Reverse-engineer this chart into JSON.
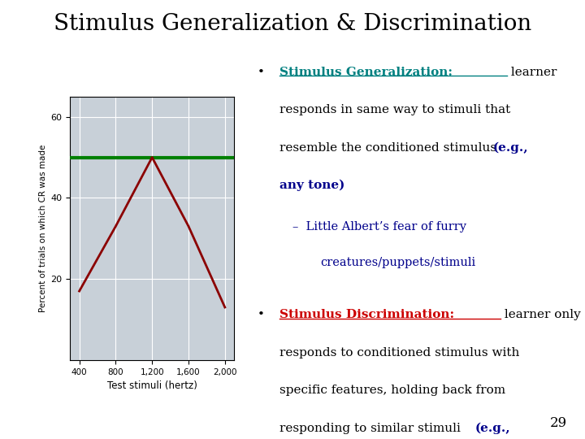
{
  "title": "Stimulus Generalization & Discrimination",
  "title_fontsize": 20,
  "title_color": "#000000",
  "background_color": "#ffffff",
  "chart_bg": "#f5e6d8",
  "plot_bg": "#c8d0d8",
  "xlabel": "Test stimuli (hertz)",
  "ylabel": "Percent of trials on which CR was made",
  "x_ticks": [
    400,
    800,
    1200,
    1600,
    2000
  ],
  "x_tick_labels": [
    "400",
    "800",
    "1,200",
    "1,600",
    "2,000"
  ],
  "y_ticks": [
    20,
    40,
    60
  ],
  "ylim": [
    0,
    65
  ],
  "xlim": [
    300,
    2100
  ],
  "red_line_x": [
    400,
    800,
    1200,
    1600,
    2000
  ],
  "red_line_y": [
    17,
    33,
    50,
    33,
    13
  ],
  "green_line_y": 50,
  "green_line_color": "#008000",
  "red_line_color": "#8B0000",
  "bullet1_label_color": "#008080",
  "bullet1_bold_color": "#00008B",
  "bullet1_sub_color": "#00008B",
  "bullet2_label_color": "#cc0000",
  "bullet2_bold_color": "#00008B",
  "bullet2_sub_color": "#00008B",
  "page_number": "29",
  "font_size_text": 11
}
